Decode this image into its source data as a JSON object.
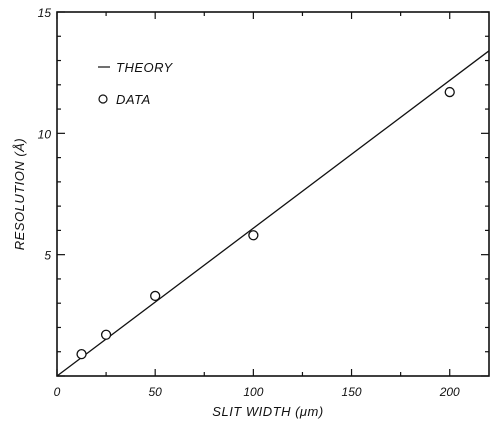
{
  "chart_data": {
    "type": "scatter",
    "title": "",
    "xlabel": "SLIT WIDTH (μm)",
    "ylabel": "RESOLUTION (Å)",
    "xlim": [
      0,
      220
    ],
    "ylim": [
      0,
      15
    ],
    "x_ticks": [
      0,
      50,
      100,
      150,
      200
    ],
    "y_ticks_labeled": [
      5,
      10,
      15
    ],
    "x_tick_labels": [
      "0",
      "50",
      "100",
      "150",
      "200"
    ],
    "y_tick_labels": [
      "5",
      "10",
      "15"
    ],
    "grid": false,
    "legend_position": "top-left",
    "series": [
      {
        "name": "THEORY",
        "kind": "line",
        "x": [
          0,
          220
        ],
        "y": [
          0,
          13.4
        ]
      },
      {
        "name": "DATA",
        "kind": "scatter",
        "marker": "open-circle",
        "x": [
          12.5,
          25,
          50,
          100,
          200
        ],
        "y": [
          0.9,
          1.7,
          3.3,
          5.8,
          11.7
        ]
      }
    ],
    "legend": [
      {
        "label": "THEORY",
        "symbol": "line"
      },
      {
        "label": "DATA",
        "symbol": "circle"
      }
    ]
  }
}
